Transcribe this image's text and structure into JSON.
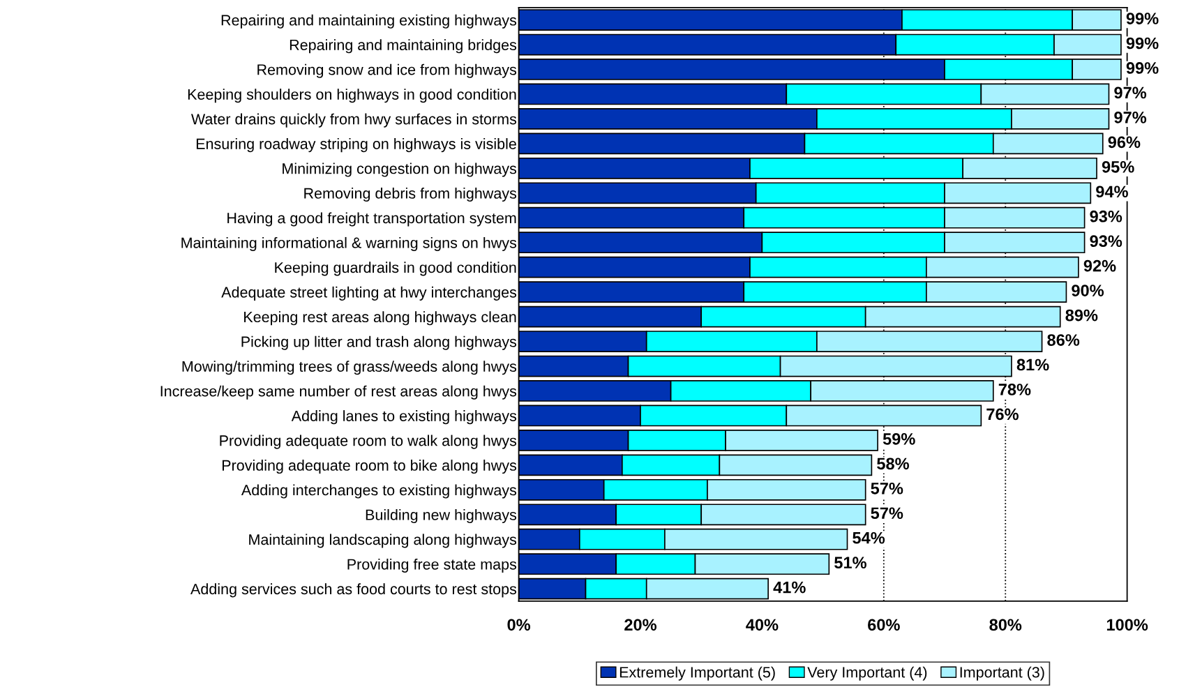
{
  "chart_data": {
    "type": "bar",
    "orientation": "horizontal",
    "stacked": true,
    "categories": [
      "Repairing and maintaining existing highways",
      "Repairing and maintaining bridges",
      "Removing snow and ice from highways",
      "Keeping shoulders on highways in good condition",
      "Water drains quickly from hwy surfaces in storms",
      "Ensuring roadway striping on highways is visible",
      "Minimizing congestion on highways",
      "Removing debris from highways",
      "Having a good freight transportation system",
      "Maintaining informational & warning signs on hwys",
      "Keeping guardrails in good condition",
      "Adequate street lighting at hwy interchanges",
      "Keeping rest areas along highways clean",
      "Picking up litter and trash along highways",
      "Mowing/trimming trees of grass/weeds along hwys",
      "Increase/keep same number of rest areas along hwys",
      "Adding lanes to existing highways",
      "Providing adequate room to walk along hwys",
      "Providing adequate room to bike along hwys",
      "Adding interchanges to existing highways",
      "Building new highways",
      "Maintaining landscaping along highways",
      "Providing free state maps",
      "Adding services such as food courts to rest stops"
    ],
    "series": [
      {
        "name": "Extremely Important (5)",
        "color": "#0033b3",
        "values": [
          63,
          62,
          70,
          44,
          49,
          47,
          38,
          39,
          37,
          40,
          38,
          37,
          30,
          21,
          18,
          25,
          20,
          18,
          17,
          14,
          16,
          10,
          16,
          11
        ]
      },
      {
        "name": "Very Important (4)",
        "color": "#00ffff",
        "values": [
          28,
          26,
          21,
          32,
          32,
          31,
          35,
          31,
          33,
          30,
          29,
          30,
          27,
          28,
          25,
          23,
          24,
          16,
          16,
          17,
          14,
          14,
          13,
          10
        ]
      },
      {
        "name": "Important (3)",
        "color": "#a8f2ff",
        "values": [
          8,
          11,
          8,
          21,
          16,
          18,
          22,
          24,
          23,
          23,
          25,
          23,
          32,
          37,
          38,
          30,
          32,
          25,
          25,
          26,
          27,
          30,
          22,
          20
        ]
      }
    ],
    "totals": [
      "99%",
      "99%",
      "99%",
      "97%",
      "97%",
      "96%",
      "95%",
      "94%",
      "93%",
      "93%",
      "92%",
      "90%",
      "89%",
      "86%",
      "81%",
      "78%",
      "76%",
      "59%",
      "58%",
      "57%",
      "57%",
      "54%",
      "51%",
      "41%"
    ],
    "xlim": [
      0,
      100
    ],
    "xticks": [
      {
        "value": 0,
        "label": "0%"
      },
      {
        "value": 20,
        "label": "20%"
      },
      {
        "value": 40,
        "label": "40%"
      },
      {
        "value": 60,
        "label": "60%"
      },
      {
        "value": 80,
        "label": "80%"
      },
      {
        "value": 100,
        "label": "100%"
      }
    ],
    "ref_lines": [
      {
        "axis": "x",
        "value": 60,
        "line_style": "dotted",
        "color": "#000000"
      },
      {
        "axis": "x",
        "value": 80,
        "line_style": "dotted",
        "color": "#000000"
      }
    ],
    "grid": false,
    "legend": "bottom"
  }
}
